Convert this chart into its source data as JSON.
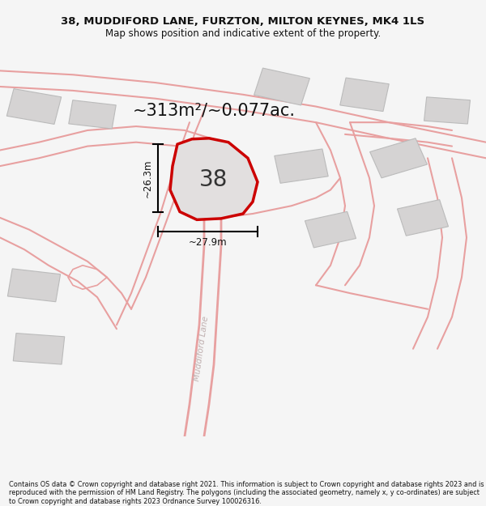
{
  "title": "38, MUDDIFORD LANE, FURZTON, MILTON KEYNES, MK4 1LS",
  "subtitle": "Map shows position and indicative extent of the property.",
  "area_text": "~313m²/~0.077ac.",
  "label_38": "38",
  "dim_height": "~26.3m",
  "dim_width": "~27.9m",
  "road_label": "Muddiford Lane",
  "footer": "Contains OS data © Crown copyright and database right 2021. This information is subject to Crown copyright and database rights 2023 and is reproduced with the permission of HM Land Registry. The polygons (including the associated geometry, namely x, y co-ordinates) are subject to Crown copyright and database rights 2023 Ordnance Survey 100026316.",
  "bg_color": "#f5f5f5",
  "map_bg": "#eeecec",
  "plot_fill": "#e2dfdf",
  "plot_edge": "#cc0000",
  "road_color": "#e8a0a0",
  "building_fill": "#d5d3d3",
  "building_edge": "#bbbbbb",
  "title_color": "#111111",
  "footer_color": "#111111"
}
